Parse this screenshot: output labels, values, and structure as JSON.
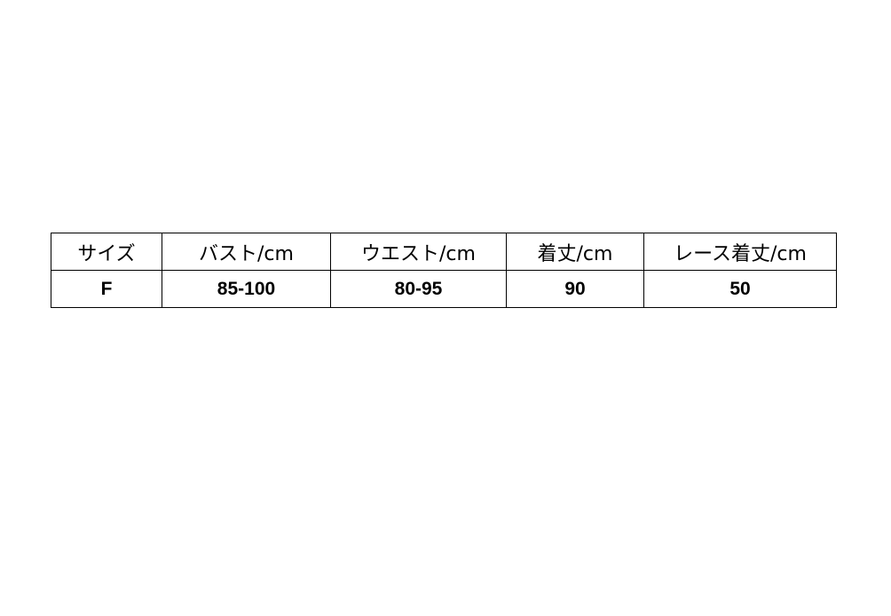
{
  "table": {
    "headers": [
      "サイズ",
      "バスト/cm",
      "ウエスト/cm",
      "着丈/cm",
      "レース着丈/cm"
    ],
    "rows": [
      [
        "F",
        "85-100",
        "80-95",
        "90",
        "50"
      ]
    ]
  }
}
